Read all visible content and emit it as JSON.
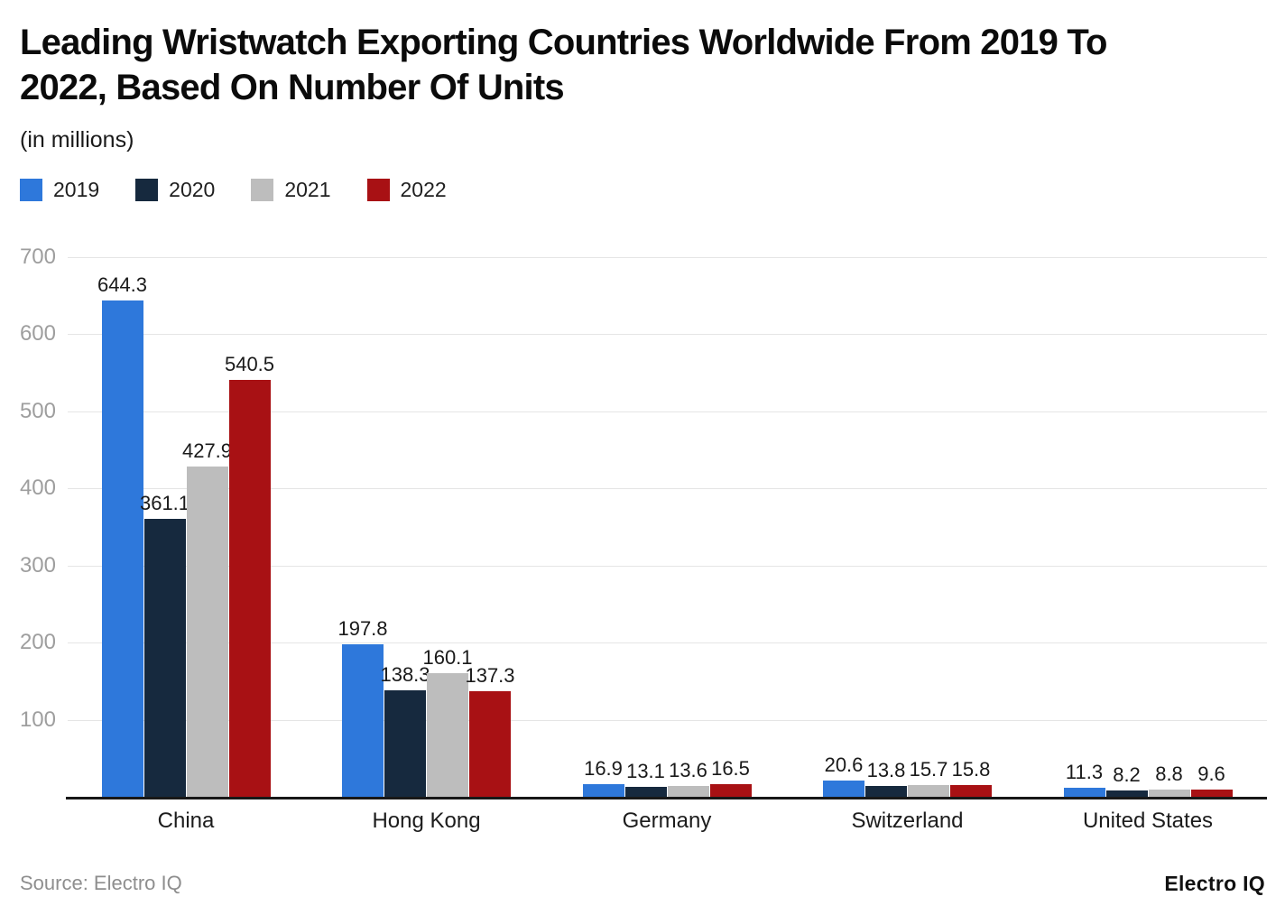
{
  "header": {
    "title_line1": "Leading Wristwatch Exporting Countries Worldwide From 2019 To",
    "title_line2": "2022, Based On Number Of Units",
    "subtitle": "(in millions)"
  },
  "chart_data": {
    "type": "bar",
    "title": "Leading Wristwatch Exporting Countries Worldwide From 2019 To 2022, Based On Number Of Units",
    "subtitle": "(in millions)",
    "categories": [
      "China",
      "Hong Kong",
      "Germany",
      "Switzerland",
      "United States"
    ],
    "series": [
      {
        "name": "2019",
        "color": "#2e78db",
        "values": [
          644.3,
          197.8,
          16.9,
          20.6,
          11.3
        ]
      },
      {
        "name": "2020",
        "color": "#16293e",
        "values": [
          361.1,
          138.3,
          13.1,
          13.8,
          8.2
        ]
      },
      {
        "name": "2021",
        "color": "#bdbdbd",
        "values": [
          427.9,
          160.1,
          13.6,
          15.7,
          8.8
        ]
      },
      {
        "name": "2022",
        "color": "#a81114",
        "values": [
          540.5,
          137.3,
          16.5,
          15.8,
          9.6
        ]
      }
    ],
    "ylim": [
      0,
      700
    ],
    "yticks": [
      100,
      200,
      300,
      400,
      500,
      600,
      700
    ],
    "grid": true,
    "legend_position": "top-left",
    "value_labels": true,
    "xlabel": "",
    "ylabel": ""
  },
  "footer": {
    "source": "Source: Electro IQ",
    "brand": "Electro IQ"
  }
}
